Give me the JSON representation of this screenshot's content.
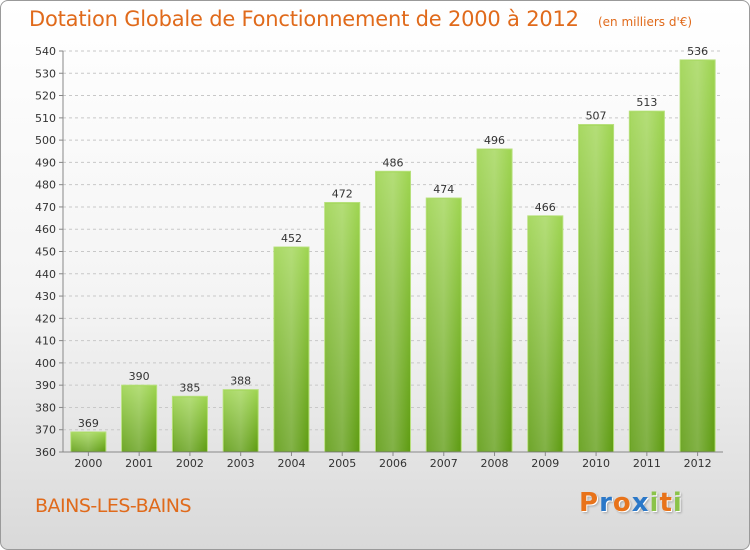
{
  "chart_data": {
    "type": "bar",
    "title": "Dotation Globale de Fonctionnement de 2000 à 2012",
    "subtitle": "(en milliers d'€)",
    "categories": [
      "2000",
      "2001",
      "2002",
      "2003",
      "2004",
      "2005",
      "2006",
      "2007",
      "2008",
      "2009",
      "2010",
      "2011",
      "2012"
    ],
    "values": [
      369,
      390,
      385,
      388,
      452,
      472,
      486,
      474,
      496,
      466,
      507,
      513,
      536
    ],
    "ylim": [
      360,
      540
    ],
    "yticks": [
      360,
      370,
      380,
      390,
      400,
      410,
      420,
      430,
      440,
      450,
      460,
      470,
      480,
      490,
      500,
      510,
      520,
      530,
      540
    ],
    "grid": true,
    "bar_color": "#7dc02e"
  },
  "footer": {
    "town": "BAINS-LES-BAINS",
    "logo_letters": [
      "P",
      "r",
      "o",
      "x",
      "i",
      "t",
      "i"
    ],
    "logo_colors": [
      "#e8731a",
      "#2b78c8",
      "#e8731a",
      "#2b78c8",
      "#8bc34a",
      "#e8731a",
      "#8bc34a"
    ]
  }
}
